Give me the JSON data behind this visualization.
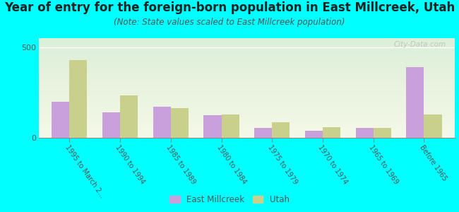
{
  "title": "Year of entry for the foreign-born population in East Millcreek, Utah",
  "subtitle": "(Note: State values scaled to East Millcreek population)",
  "categories": [
    "1995 to March 2...",
    "1990 to 1994",
    "1985 to 1989",
    "1980 to 1984",
    "1975 to 1979",
    "1970 to 1974",
    "1965 to 1969",
    "Before 1965"
  ],
  "east_millcreek": [
    200,
    140,
    170,
    125,
    55,
    40,
    55,
    390
  ],
  "utah": [
    430,
    235,
    165,
    130,
    85,
    60,
    55,
    130
  ],
  "ylim": [
    0,
    550
  ],
  "yticks": [
    0,
    500
  ],
  "bar_color_em": "#c9a0dc",
  "bar_color_utah": "#c8d08c",
  "background_color": "#00ffff",
  "watermark": "City-Data.com",
  "legend_em": "East Millcreek",
  "legend_utah": "Utah",
  "title_fontsize": 12,
  "subtitle_fontsize": 8.5
}
